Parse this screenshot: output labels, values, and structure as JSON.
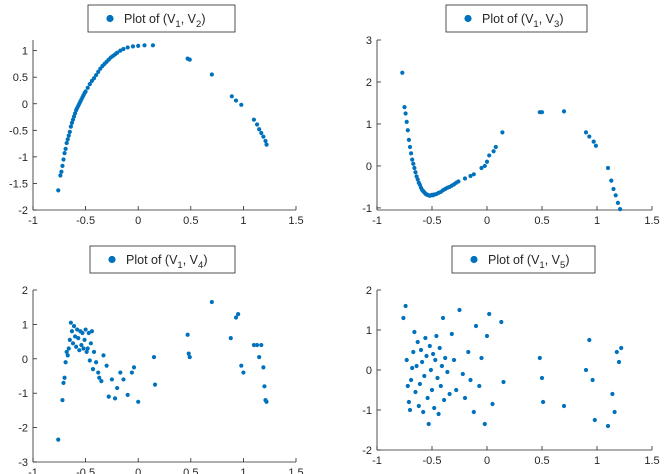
{
  "colors": {
    "marker": "#0072BD",
    "axis": "#262626"
  },
  "chart_data": [
    {
      "type": "scatter",
      "legend": {
        "label": "Plot of (V",
        "sub1": "1",
        "mid": ", V",
        "sub2": "2",
        "end": ")",
        "placement": "top"
      },
      "xlim": [
        -1,
        1.5
      ],
      "ylim": [
        -2,
        1.2
      ],
      "xticks": [
        -1,
        -0.5,
        0,
        0.5,
        1,
        1.5
      ],
      "xtick_labels": [
        "-1",
        "-0.5",
        "0",
        "0.5",
        "1",
        "1.5"
      ],
      "yticks": [
        -2,
        -1.5,
        -1,
        -0.5,
        0,
        0.5,
        1
      ],
      "ytick_labels": [
        "-2",
        "-1.5",
        "-1",
        "-0.5",
        "0",
        "0.5",
        "1"
      ],
      "x": [
        -0.76,
        -0.74,
        -0.73,
        -0.72,
        -0.71,
        -0.7,
        -0.69,
        -0.68,
        -0.67,
        -0.66,
        -0.65,
        -0.64,
        -0.63,
        -0.62,
        -0.61,
        -0.6,
        -0.59,
        -0.58,
        -0.57,
        -0.56,
        -0.55,
        -0.54,
        -0.53,
        -0.52,
        -0.51,
        -0.5,
        -0.48,
        -0.46,
        -0.44,
        -0.42,
        -0.4,
        -0.38,
        -0.36,
        -0.34,
        -0.32,
        -0.3,
        -0.28,
        -0.26,
        -0.24,
        -0.22,
        -0.2,
        -0.17,
        -0.14,
        -0.1,
        -0.05,
        0.0,
        0.06,
        0.14,
        0.47,
        0.49,
        0.7,
        0.89,
        0.93,
        0.98,
        1.1,
        1.13,
        1.15,
        1.17,
        1.19,
        1.21,
        1.22
      ],
      "y": [
        -1.63,
        -1.35,
        -1.28,
        -1.17,
        -1.05,
        -0.93,
        -0.85,
        -0.74,
        -0.67,
        -0.6,
        -0.53,
        -0.43,
        -0.36,
        -0.3,
        -0.24,
        -0.18,
        -0.12,
        -0.08,
        -0.04,
        0.0,
        0.04,
        0.08,
        0.12,
        0.16,
        0.2,
        0.23,
        0.3,
        0.37,
        0.43,
        0.48,
        0.54,
        0.6,
        0.66,
        0.71,
        0.75,
        0.79,
        0.83,
        0.87,
        0.9,
        0.93,
        0.96,
        1.0,
        1.03,
        1.06,
        1.08,
        1.09,
        1.1,
        1.1,
        0.85,
        0.83,
        0.55,
        0.14,
        0.06,
        -0.02,
        -0.3,
        -0.39,
        -0.48,
        -0.55,
        -0.62,
        -0.7,
        -0.77
      ]
    },
    {
      "type": "scatter",
      "legend": {
        "label": "Plot of (V",
        "sub1": "1",
        "mid": ", V",
        "sub2": "3",
        "end": ")",
        "placement": "top-right"
      },
      "xlim": [
        -1,
        1.5
      ],
      "ylim": [
        -1.05,
        3
      ],
      "xticks": [
        -1,
        -0.5,
        0,
        0.5,
        1,
        1.5
      ],
      "xtick_labels": [
        "-1",
        "-0.5",
        "0",
        "0.5",
        "1",
        "1.5"
      ],
      "yticks": [
        -1,
        0,
        1,
        2,
        3
      ],
      "ytick_labels": [
        "-1",
        "0",
        "1",
        "2",
        "3"
      ],
      "x": [
        -0.77,
        -0.75,
        -0.74,
        -0.73,
        -0.72,
        -0.71,
        -0.7,
        -0.69,
        -0.68,
        -0.67,
        -0.66,
        -0.65,
        -0.64,
        -0.63,
        -0.62,
        -0.61,
        -0.6,
        -0.59,
        -0.58,
        -0.57,
        -0.56,
        -0.55,
        -0.54,
        -0.53,
        -0.52,
        -0.51,
        -0.5,
        -0.49,
        -0.48,
        -0.46,
        -0.44,
        -0.42,
        -0.4,
        -0.38,
        -0.36,
        -0.34,
        -0.32,
        -0.3,
        -0.28,
        -0.26,
        -0.2,
        -0.15,
        -0.12,
        -0.05,
        -0.02,
        0.0,
        0.02,
        0.06,
        0.08,
        0.14,
        0.48,
        0.5,
        0.7,
        0.9,
        0.93,
        0.97,
        0.99,
        1.1,
        1.13,
        1.15,
        1.17,
        1.19,
        1.21
      ],
      "y": [
        2.22,
        1.4,
        1.25,
        1.05,
        0.85,
        0.62,
        0.45,
        0.3,
        0.15,
        0.05,
        -0.05,
        -0.15,
        -0.25,
        -0.32,
        -0.4,
        -0.45,
        -0.52,
        -0.57,
        -0.6,
        -0.63,
        -0.66,
        -0.68,
        -0.69,
        -0.7,
        -0.71,
        -0.7,
        -0.69,
        -0.7,
        -0.68,
        -0.67,
        -0.64,
        -0.62,
        -0.58,
        -0.55,
        -0.52,
        -0.5,
        -0.47,
        -0.44,
        -0.4,
        -0.37,
        -0.3,
        -0.24,
        -0.2,
        -0.05,
        0.0,
        0.1,
        0.25,
        0.35,
        0.45,
        0.8,
        1.28,
        1.28,
        1.3,
        0.8,
        0.7,
        0.58,
        0.48,
        -0.05,
        -0.35,
        -0.55,
        -0.7,
        -0.88,
        -1.03
      ]
    },
    {
      "type": "scatter",
      "legend": {
        "label": "Plot of (V",
        "sub1": "1",
        "mid": ", V",
        "sub2": "4",
        "end": ")",
        "placement": "top"
      },
      "xlim": [
        -1,
        1.5
      ],
      "ylim": [
        -3,
        2
      ],
      "xticks": [
        -1,
        -0.5,
        0,
        0.5,
        1,
        1.5
      ],
      "xtick_labels": [
        "-1",
        "-0.5",
        "0",
        "0.5",
        "1",
        "1.5"
      ],
      "yticks": [
        -3,
        -2,
        -1,
        0,
        1,
        2
      ],
      "ytick_labels": [
        "-3",
        "-2",
        "-1",
        "0",
        "1",
        "2"
      ],
      "x": [
        -0.76,
        -0.72,
        -0.71,
        -0.7,
        -0.69,
        -0.68,
        -0.67,
        -0.66,
        -0.65,
        -0.64,
        -0.63,
        -0.62,
        -0.61,
        -0.6,
        -0.59,
        -0.58,
        -0.57,
        -0.56,
        -0.55,
        -0.54,
        -0.53,
        -0.52,
        -0.51,
        -0.5,
        -0.49,
        -0.48,
        -0.47,
        -0.46,
        -0.45,
        -0.44,
        -0.43,
        -0.42,
        -0.4,
        -0.38,
        -0.37,
        -0.35,
        -0.33,
        -0.3,
        -0.28,
        -0.25,
        -0.22,
        -0.2,
        -0.17,
        -0.14,
        -0.1,
        -0.06,
        -0.04,
        0.0,
        0.15,
        0.16,
        0.47,
        0.48,
        0.49,
        0.7,
        0.88,
        0.93,
        0.95,
        0.98,
        1.0,
        1.1,
        1.13,
        1.15,
        1.17,
        1.19,
        1.2,
        1.21,
        1.22
      ],
      "y": [
        -2.35,
        -1.2,
        -0.7,
        -0.55,
        -0.1,
        0.2,
        0.1,
        0.3,
        0.55,
        1.05,
        0.8,
        0.45,
        0.95,
        0.65,
        0.35,
        0.85,
        0.6,
        0.25,
        0.8,
        0.4,
        0.75,
        0.3,
        0.55,
        0.85,
        0.2,
        0.3,
        0.75,
        -0.05,
        0.45,
        0.8,
        -0.3,
        0.2,
        -0.1,
        -0.4,
        -0.55,
        -0.65,
        0.1,
        -0.2,
        -1.1,
        -0.6,
        -1.15,
        -0.85,
        -0.4,
        -0.6,
        -1.05,
        -0.4,
        -0.25,
        -1.25,
        0.05,
        -0.75,
        0.7,
        0.15,
        0.05,
        1.65,
        0.6,
        1.2,
        1.3,
        -0.2,
        -0.4,
        0.4,
        0.4,
        0.05,
        0.4,
        -0.25,
        -0.8,
        -1.2,
        -1.25
      ]
    },
    {
      "type": "scatter",
      "legend": {
        "label": "Plot of (V",
        "sub1": "1",
        "mid": ", V",
        "sub2": "5",
        "end": ")",
        "placement": "top-right"
      },
      "xlim": [
        -1,
        1.5
      ],
      "ylim": [
        -2,
        2
      ],
      "xticks": [
        -1,
        -0.5,
        0,
        0.5,
        1,
        1.5
      ],
      "xtick_labels": [
        "-1",
        "-0.5",
        "0",
        "0.5",
        "1",
        "1.5"
      ],
      "yticks": [
        -2,
        -1,
        0,
        1,
        2
      ],
      "ytick_labels": [
        "-2",
        "-1",
        "0",
        "1",
        "2"
      ],
      "x": [
        -0.76,
        -0.74,
        -0.73,
        -0.72,
        -0.71,
        -0.7,
        -0.69,
        -0.68,
        -0.67,
        -0.66,
        -0.65,
        -0.64,
        -0.63,
        -0.62,
        -0.61,
        -0.6,
        -0.59,
        -0.58,
        -0.57,
        -0.56,
        -0.55,
        -0.54,
        -0.53,
        -0.52,
        -0.51,
        -0.5,
        -0.49,
        -0.48,
        -0.47,
        -0.46,
        -0.45,
        -0.44,
        -0.43,
        -0.42,
        -0.41,
        -0.4,
        -0.39,
        -0.38,
        -0.36,
        -0.34,
        -0.32,
        -0.3,
        -0.28,
        -0.25,
        -0.22,
        -0.2,
        -0.17,
        -0.15,
        -0.12,
        -0.1,
        -0.07,
        -0.05,
        -0.02,
        0.0,
        0.02,
        0.05,
        0.13,
        0.15,
        0.48,
        0.5,
        0.51,
        0.7,
        0.9,
        0.93,
        0.96,
        0.98,
        1.1,
        1.14,
        1.16,
        1.18,
        1.2,
        1.22
      ],
      "y": [
        1.3,
        1.6,
        0.25,
        -0.4,
        -0.8,
        -1.0,
        -0.25,
        0.05,
        0.45,
        0.95,
        -0.55,
        0.1,
        0.7,
        -0.9,
        -0.35,
        0.5,
        0.2,
        -1.05,
        -0.15,
        0.8,
        0.35,
        -0.7,
        -1.35,
        0.6,
        0.0,
        -0.5,
        0.4,
        -0.95,
        0.25,
        0.85,
        -0.2,
        -1.1,
        0.55,
        -0.4,
        0.1,
        1.3,
        -0.75,
        0.3,
        -0.05,
        -0.6,
        0.9,
        0.25,
        -0.5,
        1.5,
        -0.1,
        -0.7,
        0.45,
        -0.25,
        -1.05,
        1.1,
        -0.4,
        0.3,
        -1.35,
        0.85,
        1.4,
        -0.85,
        1.2,
        -0.3,
        0.3,
        -0.2,
        -0.8,
        -0.9,
        0.0,
        0.75,
        -0.25,
        -1.25,
        -1.4,
        -0.6,
        -1.05,
        0.45,
        0.2,
        0.55
      ]
    }
  ]
}
